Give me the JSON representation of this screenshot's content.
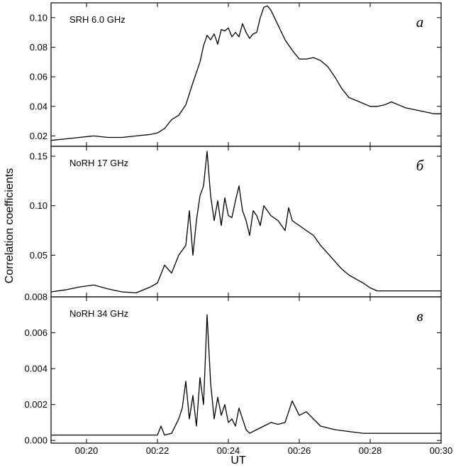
{
  "chart_data": {
    "type": "line",
    "ylabel": "Correlation coefficients",
    "xlabel": "UT",
    "x_unit": "minutes of UT hour 00",
    "xlim": [
      19,
      30
    ],
    "xticks": [
      20,
      22,
      24,
      26,
      28,
      30
    ],
    "xtick_labels": [
      "00:20",
      "00:22",
      "00:24",
      "00:26",
      "00:28",
      "00:30"
    ],
    "panels": [
      {
        "name": "SRH 6.0 GHz",
        "letter": "a",
        "ylim": [
          0.013,
          0.11
        ],
        "yticks": [
          0.02,
          0.04,
          0.06,
          0.08,
          0.1
        ],
        "ytick_labels": [
          "0.02",
          "0.04",
          "0.06",
          "0.08",
          "0.10"
        ],
        "series": [
          {
            "x": [
              19.0,
              19.4,
              19.8,
              20.2,
              20.6,
              21.0,
              21.4,
              21.8,
              22.0,
              22.2,
              22.4,
              22.6,
              22.8,
              23.0,
              23.1,
              23.2,
              23.3,
              23.4,
              23.5,
              23.6,
              23.7,
              23.8,
              23.9,
              24.0,
              24.1,
              24.2,
              24.3,
              24.4,
              24.5,
              24.6,
              24.7,
              24.8,
              24.9,
              25.0,
              25.1,
              25.2,
              25.4,
              25.6,
              25.8,
              26.0,
              26.2,
              26.4,
              26.6,
              26.8,
              27.0,
              27.2,
              27.4,
              27.6,
              27.8,
              28.0,
              28.2,
              28.4,
              28.6,
              28.8,
              29.0,
              29.2,
              29.4,
              29.6,
              29.8,
              30.0
            ],
            "y": [
              0.017,
              0.018,
              0.019,
              0.02,
              0.019,
              0.019,
              0.02,
              0.021,
              0.022,
              0.025,
              0.031,
              0.034,
              0.041,
              0.056,
              0.063,
              0.07,
              0.081,
              0.088,
              0.085,
              0.089,
              0.082,
              0.092,
              0.091,
              0.093,
              0.087,
              0.09,
              0.087,
              0.096,
              0.09,
              0.086,
              0.089,
              0.09,
              0.1,
              0.107,
              0.108,
              0.105,
              0.095,
              0.085,
              0.078,
              0.072,
              0.072,
              0.073,
              0.071,
              0.067,
              0.06,
              0.052,
              0.046,
              0.044,
              0.042,
              0.04,
              0.04,
              0.041,
              0.043,
              0.041,
              0.039,
              0.038,
              0.037,
              0.036,
              0.035,
              0.035
            ]
          }
        ]
      },
      {
        "name": "NoRH 17 GHz",
        "letter": "б",
        "ylim": [
          0.008,
          0.16
        ],
        "yticks": [
          0.05,
          0.1,
          0.15
        ],
        "ytick_labels": [
          "0.05",
          "0.10",
          "0.15"
        ],
        "series": [
          {
            "x": [
              19.0,
              19.4,
              19.8,
              20.2,
              20.6,
              21.0,
              21.4,
              21.8,
              22.0,
              22.2,
              22.4,
              22.6,
              22.8,
              22.9,
              23.0,
              23.1,
              23.2,
              23.3,
              23.4,
              23.5,
              23.6,
              23.7,
              23.8,
              23.9,
              24.0,
              24.1,
              24.2,
              24.3,
              24.4,
              24.5,
              24.6,
              24.7,
              24.8,
              24.9,
              25.0,
              25.2,
              25.4,
              25.6,
              25.7,
              25.8,
              26.0,
              26.2,
              26.4,
              26.6,
              26.8,
              27.0,
              27.2,
              27.4,
              27.6,
              27.8,
              28.0,
              28.2,
              28.6,
              29.0,
              29.4,
              30.0
            ],
            "y": [
              0.013,
              0.015,
              0.018,
              0.02,
              0.016,
              0.013,
              0.012,
              0.018,
              0.022,
              0.04,
              0.032,
              0.05,
              0.06,
              0.095,
              0.05,
              0.085,
              0.11,
              0.12,
              0.155,
              0.11,
              0.085,
              0.105,
              0.08,
              0.108,
              0.09,
              0.088,
              0.105,
              0.12,
              0.095,
              0.085,
              0.07,
              0.095,
              0.09,
              0.08,
              0.1,
              0.09,
              0.085,
              0.075,
              0.098,
              0.085,
              0.08,
              0.075,
              0.07,
              0.06,
              0.052,
              0.044,
              0.036,
              0.03,
              0.026,
              0.022,
              0.017,
              0.014,
              0.014,
              0.014,
              0.014,
              0.014
            ]
          }
        ]
      },
      {
        "name": "NoRH 34 GHz",
        "letter": "в",
        "ylim": [
          -0.00015,
          0.008
        ],
        "yticks": [
          0.0,
          0.002,
          0.004,
          0.006,
          0.008
        ],
        "ytick_labels": [
          "0.000",
          "0.002",
          "0.004",
          "0.006",
          "0.008"
        ],
        "series": [
          {
            "x": [
              19.0,
              19.5,
              20.0,
              20.5,
              21.0,
              21.5,
              22.0,
              22.1,
              22.2,
              22.4,
              22.6,
              22.7,
              22.8,
              22.9,
              23.0,
              23.1,
              23.2,
              23.3,
              23.4,
              23.5,
              23.6,
              23.7,
              23.8,
              23.9,
              24.0,
              24.1,
              24.2,
              24.3,
              24.4,
              24.5,
              24.6,
              24.8,
              25.0,
              25.2,
              25.4,
              25.6,
              25.8,
              26.0,
              26.2,
              26.4,
              26.6,
              26.8,
              27.0,
              27.4,
              27.8,
              28.2,
              28.6,
              29.0,
              29.4,
              30.0
            ],
            "y": [
              0.0003,
              0.0003,
              0.0003,
              0.0003,
              0.0003,
              0.0003,
              0.0003,
              0.0008,
              0.0003,
              0.0004,
              0.0012,
              0.0018,
              0.0033,
              0.0012,
              0.0025,
              0.0008,
              0.0035,
              0.002,
              0.007,
              0.0032,
              0.0012,
              0.0024,
              0.0014,
              0.002,
              0.001,
              0.0012,
              0.0008,
              0.0018,
              0.0012,
              0.0006,
              0.0004,
              0.0006,
              0.0008,
              0.001,
              0.0009,
              0.001,
              0.0022,
              0.0014,
              0.0016,
              0.0012,
              0.0008,
              0.0007,
              0.0006,
              0.0005,
              0.0004,
              0.0004,
              0.0004,
              0.0004,
              0.0004,
              0.0004
            ]
          }
        ]
      }
    ]
  }
}
